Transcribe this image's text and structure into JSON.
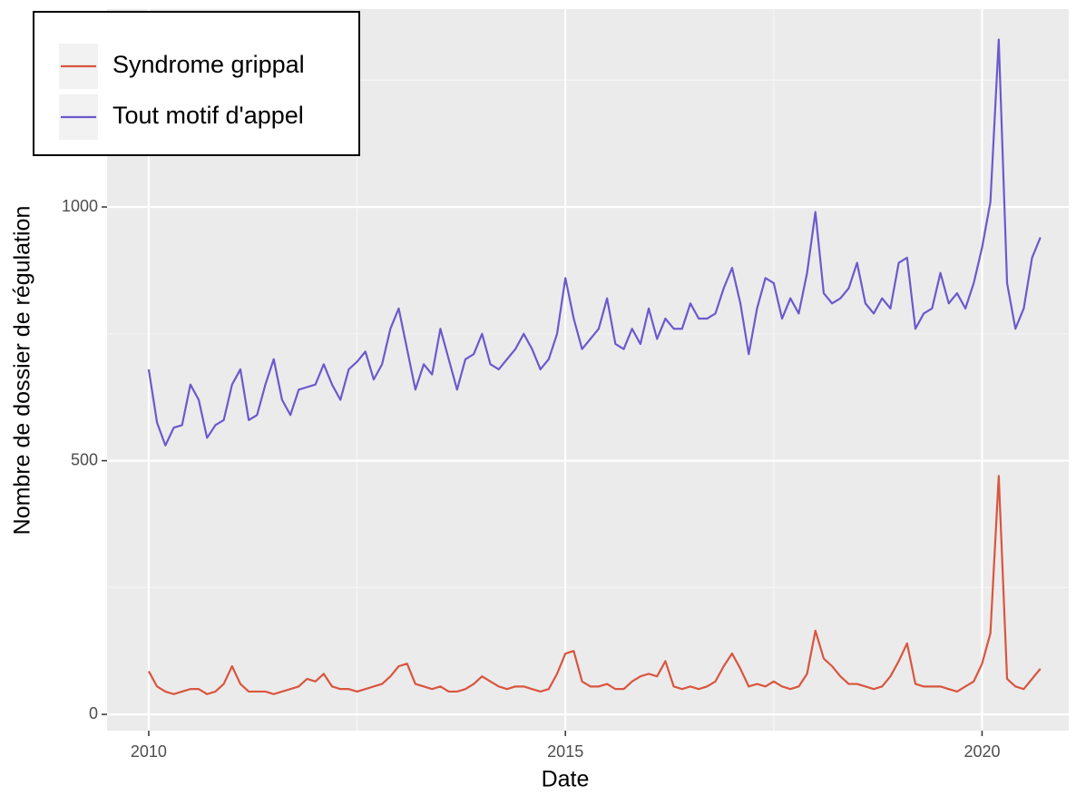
{
  "chart_data": {
    "type": "line",
    "x_label": "Date",
    "y_label": "Nombre de dossier de régulation",
    "x": [
      2010.0,
      2010.1,
      2010.2,
      2010.3,
      2010.4,
      2010.5,
      2010.6,
      2010.7,
      2010.8,
      2010.9,
      2011.0,
      2011.1,
      2011.2,
      2011.3,
      2011.4,
      2011.5,
      2011.6,
      2011.7,
      2011.8,
      2011.9,
      2012.0,
      2012.1,
      2012.2,
      2012.3,
      2012.4,
      2012.5,
      2012.6,
      2012.7,
      2012.8,
      2012.9,
      2013.0,
      2013.1,
      2013.2,
      2013.3,
      2013.4,
      2013.5,
      2013.6,
      2013.7,
      2013.8,
      2013.9,
      2014.0,
      2014.1,
      2014.2,
      2014.3,
      2014.4,
      2014.5,
      2014.6,
      2014.7,
      2014.8,
      2014.9,
      2015.0,
      2015.1,
      2015.2,
      2015.3,
      2015.4,
      2015.5,
      2015.6,
      2015.7,
      2015.8,
      2015.9,
      2016.0,
      2016.1,
      2016.2,
      2016.3,
      2016.4,
      2016.5,
      2016.6,
      2016.7,
      2016.8,
      2016.9,
      2017.0,
      2017.1,
      2017.2,
      2017.3,
      2017.4,
      2017.5,
      2017.6,
      2017.7,
      2017.8,
      2017.9,
      2018.0,
      2018.1,
      2018.2,
      2018.3,
      2018.4,
      2018.5,
      2018.6,
      2018.7,
      2018.8,
      2018.9,
      2019.0,
      2019.1,
      2019.2,
      2019.3,
      2019.4,
      2019.5,
      2019.6,
      2019.7,
      2019.8,
      2019.9,
      2020.0,
      2020.1,
      2020.2,
      2020.3,
      2020.4,
      2020.5,
      2020.6,
      2020.7
    ],
    "series": [
      {
        "name": "Syndrome grippal",
        "color": "#d9553f",
        "values": [
          85,
          55,
          45,
          40,
          45,
          50,
          50,
          40,
          45,
          60,
          95,
          60,
          45,
          45,
          45,
          40,
          45,
          50,
          55,
          70,
          65,
          80,
          55,
          50,
          50,
          45,
          50,
          55,
          60,
          75,
          95,
          100,
          60,
          55,
          50,
          55,
          45,
          45,
          50,
          60,
          75,
          65,
          55,
          50,
          55,
          55,
          50,
          45,
          50,
          80,
          120,
          125,
          65,
          55,
          55,
          60,
          50,
          50,
          65,
          75,
          80,
          75,
          105,
          55,
          50,
          55,
          50,
          55,
          65,
          95,
          120,
          90,
          55,
          60,
          55,
          65,
          55,
          50,
          55,
          80,
          165,
          110,
          95,
          75,
          60,
          60,
          55,
          50,
          55,
          75,
          105,
          140,
          60,
          55,
          55,
          55,
          50,
          45,
          55,
          65,
          100,
          160,
          470,
          70,
          55,
          50,
          70,
          90
        ]
      },
      {
        "name": "Tout motif d'appel",
        "color": "#6a5acd",
        "values": [
          680,
          575,
          530,
          565,
          570,
          650,
          620,
          545,
          570,
          580,
          650,
          680,
          580,
          590,
          650,
          700,
          620,
          590,
          640,
          645,
          650,
          690,
          650,
          620,
          680,
          695,
          715,
          660,
          690,
          760,
          800,
          720,
          640,
          690,
          670,
          760,
          700,
          640,
          700,
          710,
          750,
          690,
          680,
          700,
          720,
          750,
          720,
          680,
          700,
          750,
          860,
          780,
          720,
          740,
          760,
          820,
          730,
          720,
          760,
          730,
          800,
          740,
          780,
          760,
          760,
          810,
          780,
          780,
          790,
          840,
          880,
          810,
          710,
          800,
          860,
          850,
          780,
          820,
          790,
          870,
          990,
          830,
          810,
          820,
          840,
          890,
          810,
          790,
          820,
          800,
          890,
          900,
          760,
          790,
          800,
          870,
          810,
          830,
          800,
          850,
          920,
          1010,
          1330,
          850,
          760,
          800,
          900,
          940
        ]
      }
    ],
    "xlim": [
      2009.5,
      2021.04
    ],
    "xticks": [
      2010,
      2015,
      2020
    ],
    "ylim": [
      -32,
      1390
    ],
    "yticks": [
      0,
      500,
      1000
    ],
    "grid": true,
    "legend": "top-left"
  }
}
